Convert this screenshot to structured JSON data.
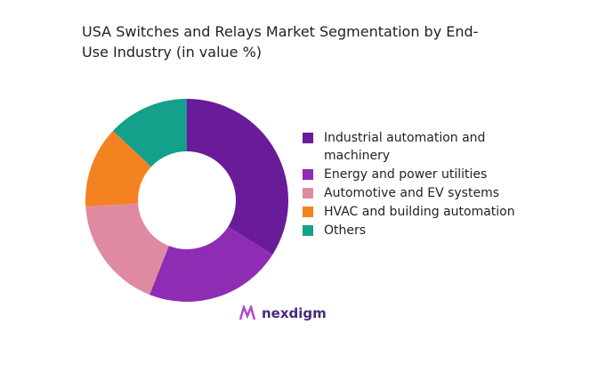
{
  "chart_data": {
    "type": "donut",
    "title": "USA Switches and Relays Market Segmentation by End-Use Industry (in value %)",
    "categories": [
      "Industrial automation and machinery",
      "Energy and power utilities",
      "Automotive and EV systems",
      "HVAC and building automation",
      "Others"
    ],
    "values": [
      34,
      22,
      18,
      13,
      13
    ],
    "colors": [
      "#6a1b9a",
      "#8e2cb4",
      "#e08aa2",
      "#f58220",
      "#14a08a"
    ],
    "legend": "right"
  },
  "logo": "nexdigm"
}
